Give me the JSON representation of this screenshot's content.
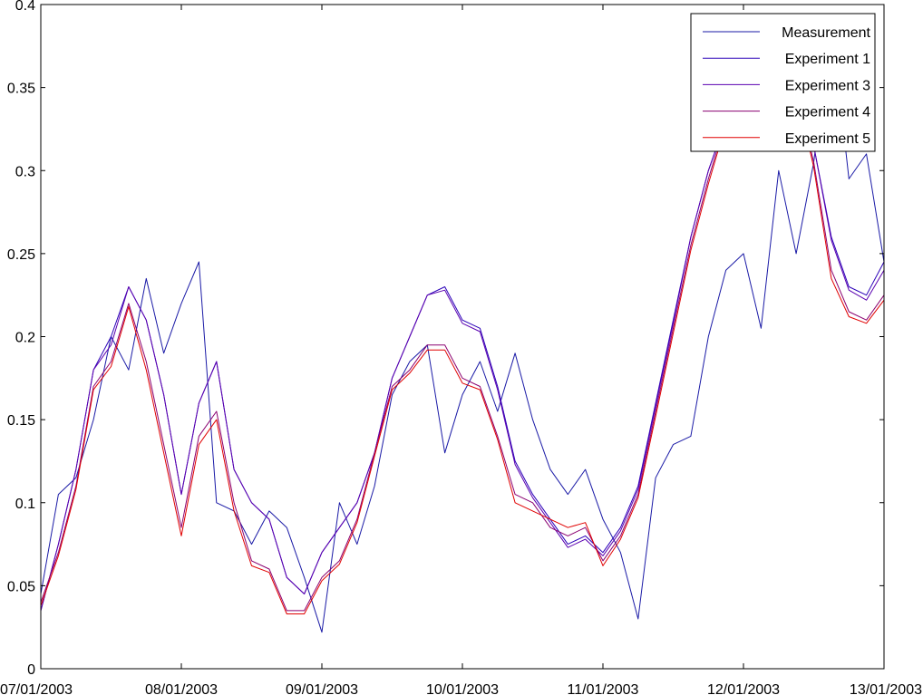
{
  "chart_data": {
    "type": "line",
    "title": "",
    "xlabel": "",
    "ylabel": "",
    "x_range": [
      "07/01/2003",
      "13/01/2003"
    ],
    "ylim": [
      0,
      0.4
    ],
    "grid": false,
    "legend_position": "top-right",
    "x_ticks": [
      {
        "date": "07/01/2003",
        "label": "07/01/2003"
      },
      {
        "date": "08/01/2003",
        "label": "08/01/2003"
      },
      {
        "date": "09/01/2003",
        "label": "09/01/2003"
      },
      {
        "date": "10/01/2003",
        "label": "10/01/2003"
      },
      {
        "date": "11/01/2003",
        "label": "11/01/2003"
      },
      {
        "date": "12/01/2003",
        "label": "12/01/2003"
      },
      {
        "date": "13/01/2003",
        "label": "13/01/2003"
      }
    ],
    "y_ticks": [
      {
        "value": 0,
        "label": "0"
      },
      {
        "value": 0.05,
        "label": "0.05"
      },
      {
        "value": 0.1,
        "label": "0.1"
      },
      {
        "value": 0.15,
        "label": "0.15"
      },
      {
        "value": 0.2,
        "label": "0.2"
      },
      {
        "value": 0.25,
        "label": "0.25"
      },
      {
        "value": 0.3,
        "label": "0.3"
      },
      {
        "value": 0.35,
        "label": "0.35"
      },
      {
        "value": 0.4,
        "label": "0.4"
      }
    ],
    "x": [
      "07/01/2003 00:00",
      "07/01/2003 03:00",
      "07/01/2003 06:00",
      "07/01/2003 09:00",
      "07/01/2003 12:00",
      "07/01/2003 15:00",
      "07/01/2003 18:00",
      "07/01/2003 21:00",
      "08/01/2003 00:00",
      "08/01/2003 03:00",
      "08/01/2003 06:00",
      "08/01/2003 09:00",
      "08/01/2003 12:00",
      "08/01/2003 15:00",
      "08/01/2003 18:00",
      "08/01/2003 21:00",
      "09/01/2003 00:00",
      "09/01/2003 03:00",
      "09/01/2003 06:00",
      "09/01/2003 09:00",
      "09/01/2003 12:00",
      "09/01/2003 15:00",
      "09/01/2003 18:00",
      "09/01/2003 21:00",
      "10/01/2003 00:00",
      "10/01/2003 03:00",
      "10/01/2003 06:00",
      "10/01/2003 09:00",
      "10/01/2003 12:00",
      "10/01/2003 15:00",
      "10/01/2003 18:00",
      "10/01/2003 21:00",
      "11/01/2003 00:00",
      "11/01/2003 03:00",
      "11/01/2003 06:00",
      "11/01/2003 09:00",
      "11/01/2003 12:00",
      "11/01/2003 15:00",
      "11/01/2003 18:00",
      "11/01/2003 21:00",
      "12/01/2003 00:00",
      "12/01/2003 03:00",
      "12/01/2003 06:00",
      "12/01/2003 09:00",
      "12/01/2003 12:00",
      "12/01/2003 15:00",
      "12/01/2003 18:00",
      "12/01/2003 21:00",
      "13/01/2003 00:00"
    ],
    "series": [
      {
        "name": "Measurement",
        "color": "#1a1aa6",
        "values": [
          0.045,
          0.105,
          0.115,
          0.15,
          0.2,
          0.18,
          0.235,
          0.19,
          0.22,
          0.245,
          0.1,
          0.095,
          0.075,
          0.095,
          0.085,
          0.055,
          0.022,
          0.1,
          0.075,
          0.11,
          0.165,
          0.185,
          0.195,
          0.13,
          0.165,
          0.185,
          0.155,
          0.19,
          0.15,
          0.12,
          0.105,
          0.12,
          0.09,
          0.07,
          0.03,
          0.115,
          0.135,
          0.14,
          0.2,
          0.24,
          0.25,
          0.205,
          0.3,
          0.25,
          0.305,
          0.39,
          0.295,
          0.31,
          0.245
        ]
      },
      {
        "name": "Experiment 1",
        "color": "#2a00b8",
        "values": [
          0.035,
          0.075,
          0.12,
          0.18,
          0.2,
          0.23,
          0.21,
          0.165,
          0.105,
          0.16,
          0.185,
          0.12,
          0.1,
          0.09,
          0.055,
          0.045,
          0.07,
          0.085,
          0.1,
          0.13,
          0.175,
          0.2,
          0.225,
          0.23,
          0.21,
          0.205,
          0.17,
          0.125,
          0.105,
          0.09,
          0.075,
          0.08,
          0.07,
          0.085,
          0.11,
          0.16,
          0.21,
          0.26,
          0.3,
          0.33,
          0.345,
          0.36,
          0.36,
          0.355,
          0.315,
          0.26,
          0.23,
          0.225,
          0.245
        ]
      },
      {
        "name": "Experiment 3",
        "color": "#5a00b0",
        "values": [
          0.035,
          0.075,
          0.12,
          0.18,
          0.195,
          0.23,
          0.21,
          0.165,
          0.105,
          0.16,
          0.185,
          0.12,
          0.1,
          0.09,
          0.055,
          0.045,
          0.07,
          0.085,
          0.1,
          0.13,
          0.175,
          0.2,
          0.225,
          0.228,
          0.208,
          0.203,
          0.168,
          0.123,
          0.103,
          0.088,
          0.073,
          0.078,
          0.068,
          0.083,
          0.108,
          0.158,
          0.208,
          0.26,
          0.3,
          0.33,
          0.345,
          0.36,
          0.36,
          0.355,
          0.315,
          0.258,
          0.228,
          0.222,
          0.24
        ]
      },
      {
        "name": "Experiment 4",
        "color": "#8a0070",
        "values": [
          0.04,
          0.07,
          0.11,
          0.17,
          0.185,
          0.22,
          0.185,
          0.135,
          0.085,
          0.14,
          0.155,
          0.1,
          0.065,
          0.06,
          0.035,
          0.035,
          0.055,
          0.065,
          0.09,
          0.13,
          0.17,
          0.18,
          0.195,
          0.195,
          0.175,
          0.17,
          0.14,
          0.105,
          0.1,
          0.085,
          0.08,
          0.085,
          0.065,
          0.08,
          0.105,
          0.155,
          0.205,
          0.255,
          0.295,
          0.33,
          0.345,
          0.36,
          0.36,
          0.35,
          0.305,
          0.24,
          0.215,
          0.21,
          0.225
        ]
      },
      {
        "name": "Experiment 5",
        "color": "#e00000",
        "values": [
          0.038,
          0.068,
          0.108,
          0.168,
          0.182,
          0.218,
          0.18,
          0.13,
          0.08,
          0.135,
          0.15,
          0.095,
          0.062,
          0.058,
          0.033,
          0.033,
          0.053,
          0.063,
          0.088,
          0.128,
          0.168,
          0.178,
          0.192,
          0.192,
          0.172,
          0.168,
          0.138,
          0.1,
          0.095,
          0.09,
          0.085,
          0.088,
          0.062,
          0.078,
          0.103,
          0.152,
          0.202,
          0.252,
          0.292,
          0.328,
          0.342,
          0.358,
          0.358,
          0.348,
          0.302,
          0.235,
          0.212,
          0.208,
          0.222
        ]
      }
    ]
  }
}
